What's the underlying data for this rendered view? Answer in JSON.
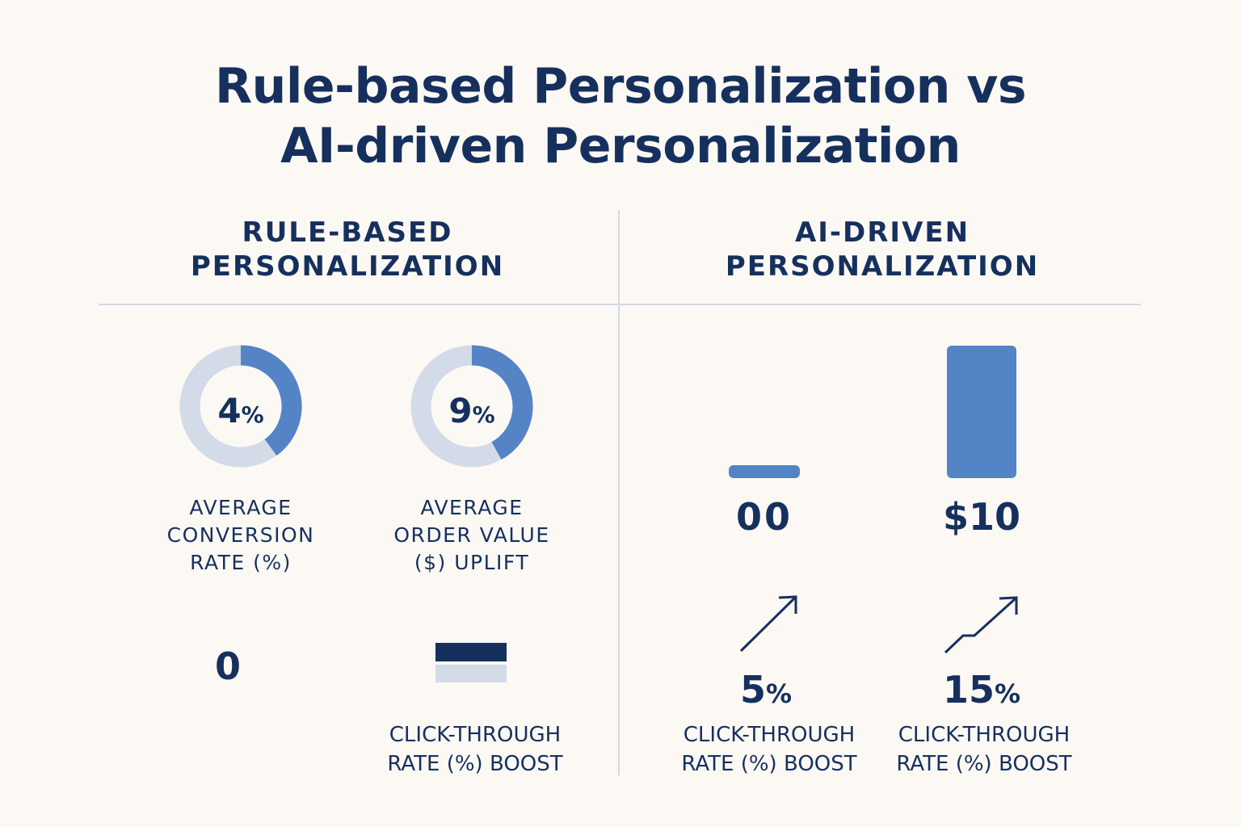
{
  "title_line1": "Rule-based Personalization vs",
  "title_line2": "AI-driven Personalization",
  "left": {
    "heading_line1": "RULE-BASED",
    "heading_line2": "PERSONALIZATION",
    "metrics": [
      {
        "value_num": "4",
        "value_unit": "%",
        "label_lines": [
          "AVERAGE",
          "CONVERSION",
          "RATE (%)"
        ]
      },
      {
        "value_num": "9",
        "value_unit": "%",
        "label_lines": [
          "AVERAGE",
          "ORDER VALUE",
          "($) UPLIFT"
        ]
      }
    ],
    "ctr_value": "0",
    "ctr_label_lines": [
      "CLICK-THROUGH",
      "RATE (%) BOOST"
    ]
  },
  "right": {
    "heading_line1": "AI-DRIVEN",
    "heading_line2": "PERSONALIZATION",
    "bar_labels": [
      "00",
      "$10"
    ],
    "ctr_metrics": [
      {
        "value_num": "5",
        "value_unit": "%",
        "label_lines": [
          "CLICK-THROUGH",
          "RATE (%) BOOST"
        ]
      },
      {
        "value_num": "15",
        "value_unit": "%",
        "label_lines": [
          "CLICK-THROUGH",
          "RATE (%) BOOST"
        ]
      }
    ]
  },
  "colors": {
    "navy": "#16305e",
    "accent_blue": "#5584c6",
    "light_track": "#d3dbe8",
    "divider": "#d4d9e3",
    "background": "#fcf9f4"
  },
  "chart_data": [
    {
      "type": "pie",
      "title": "",
      "values": [
        4
      ],
      "labels": [
        "AVERAGE CONVERSION RATE (%)"
      ],
      "unit": "%"
    },
    {
      "type": "pie",
      "title": "",
      "values": [
        9
      ],
      "labels": [
        "AVERAGE ORDER VALUE ($) UPLIFT"
      ],
      "unit": "%"
    },
    {
      "type": "bar",
      "categories": [
        "00",
        "$10"
      ],
      "values": [
        0,
        10
      ],
      "ylim": [
        0,
        10
      ]
    }
  ]
}
